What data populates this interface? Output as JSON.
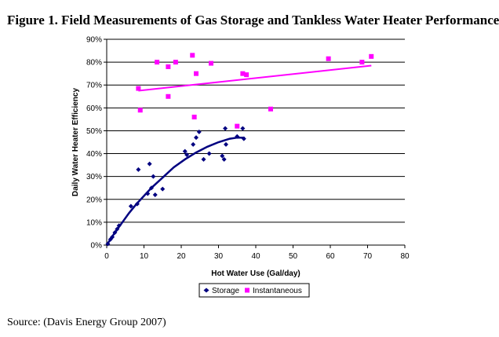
{
  "title": "Figure 1. Field Measurements of Gas Storage and Tankless Water Heater Performance",
  "source": "Source: (Davis Energy Group 2007)",
  "chart_data": {
    "type": "scatter",
    "xlabel": "Hot Water Use (Gal/day)",
    "ylabel": "Daily Water Heater Efficiency",
    "xlim": [
      0,
      80
    ],
    "ylim": [
      0,
      90
    ],
    "xticks": [
      "0",
      "10",
      "20",
      "30",
      "40",
      "50",
      "60",
      "70",
      "80"
    ],
    "yticks": [
      "0%",
      "10%",
      "20%",
      "30%",
      "40%",
      "50%",
      "60%",
      "70%",
      "80%",
      "90%"
    ],
    "grid": "horizontal",
    "legend_position": "bottom",
    "series": [
      {
        "name": "Storage",
        "color": "#000080",
        "marker": "diamond",
        "points": [
          [
            0.3,
            0.5
          ],
          [
            1.0,
            2.5
          ],
          [
            1.5,
            3.5
          ],
          [
            2.2,
            5.5
          ],
          [
            2.8,
            7
          ],
          [
            3.3,
            8.5
          ],
          [
            6.5,
            17
          ],
          [
            8.2,
            18
          ],
          [
            8.5,
            33
          ],
          [
            11,
            22.5
          ],
          [
            11.5,
            35.5
          ],
          [
            12,
            25
          ],
          [
            12.5,
            30
          ],
          [
            13,
            22
          ],
          [
            15,
            24.5
          ],
          [
            21,
            41
          ],
          [
            21.5,
            39.5
          ],
          [
            23.2,
            44
          ],
          [
            24,
            47
          ],
          [
            24.8,
            49.5
          ],
          [
            26,
            37.5
          ],
          [
            27.5,
            40
          ],
          [
            31,
            39
          ],
          [
            31.5,
            37.5
          ],
          [
            31.8,
            51
          ],
          [
            32,
            44
          ],
          [
            35,
            47.5
          ],
          [
            36.5,
            51
          ],
          [
            36.8,
            46.5
          ]
        ],
        "trendline": {
          "type": "curve",
          "points": [
            [
              0,
              0
            ],
            [
              2,
              5
            ],
            [
              4,
              9.5
            ],
            [
              6,
              14
            ],
            [
              8,
              18
            ],
            [
              10,
              21.5
            ],
            [
              12,
              25
            ],
            [
              15,
              29.5
            ],
            [
              18,
              34
            ],
            [
              21,
              37.5
            ],
            [
              24,
              40.5
            ],
            [
              27,
              43
            ],
            [
              30,
              45
            ],
            [
              33,
              46.5
            ],
            [
              35,
              47
            ],
            [
              37,
              47
            ]
          ]
        }
      },
      {
        "name": "Instantaneous",
        "color": "#ff00ff",
        "marker": "square",
        "points": [
          [
            8.5,
            68.5
          ],
          [
            9,
            59
          ],
          [
            13.5,
            80
          ],
          [
            16.5,
            78
          ],
          [
            16.5,
            65
          ],
          [
            18.5,
            80
          ],
          [
            23,
            83
          ],
          [
            23.5,
            56
          ],
          [
            24,
            75
          ],
          [
            28,
            79.5
          ],
          [
            35,
            52
          ],
          [
            36.5,
            75
          ],
          [
            37.5,
            74.5
          ],
          [
            44,
            59.5
          ],
          [
            59.5,
            81.5
          ],
          [
            68.5,
            80
          ],
          [
            71,
            82.5
          ]
        ],
        "trendline": {
          "type": "linear",
          "points": [
            [
              8.5,
              67.5
            ],
            [
              71,
              78.5
            ]
          ]
        }
      }
    ]
  }
}
